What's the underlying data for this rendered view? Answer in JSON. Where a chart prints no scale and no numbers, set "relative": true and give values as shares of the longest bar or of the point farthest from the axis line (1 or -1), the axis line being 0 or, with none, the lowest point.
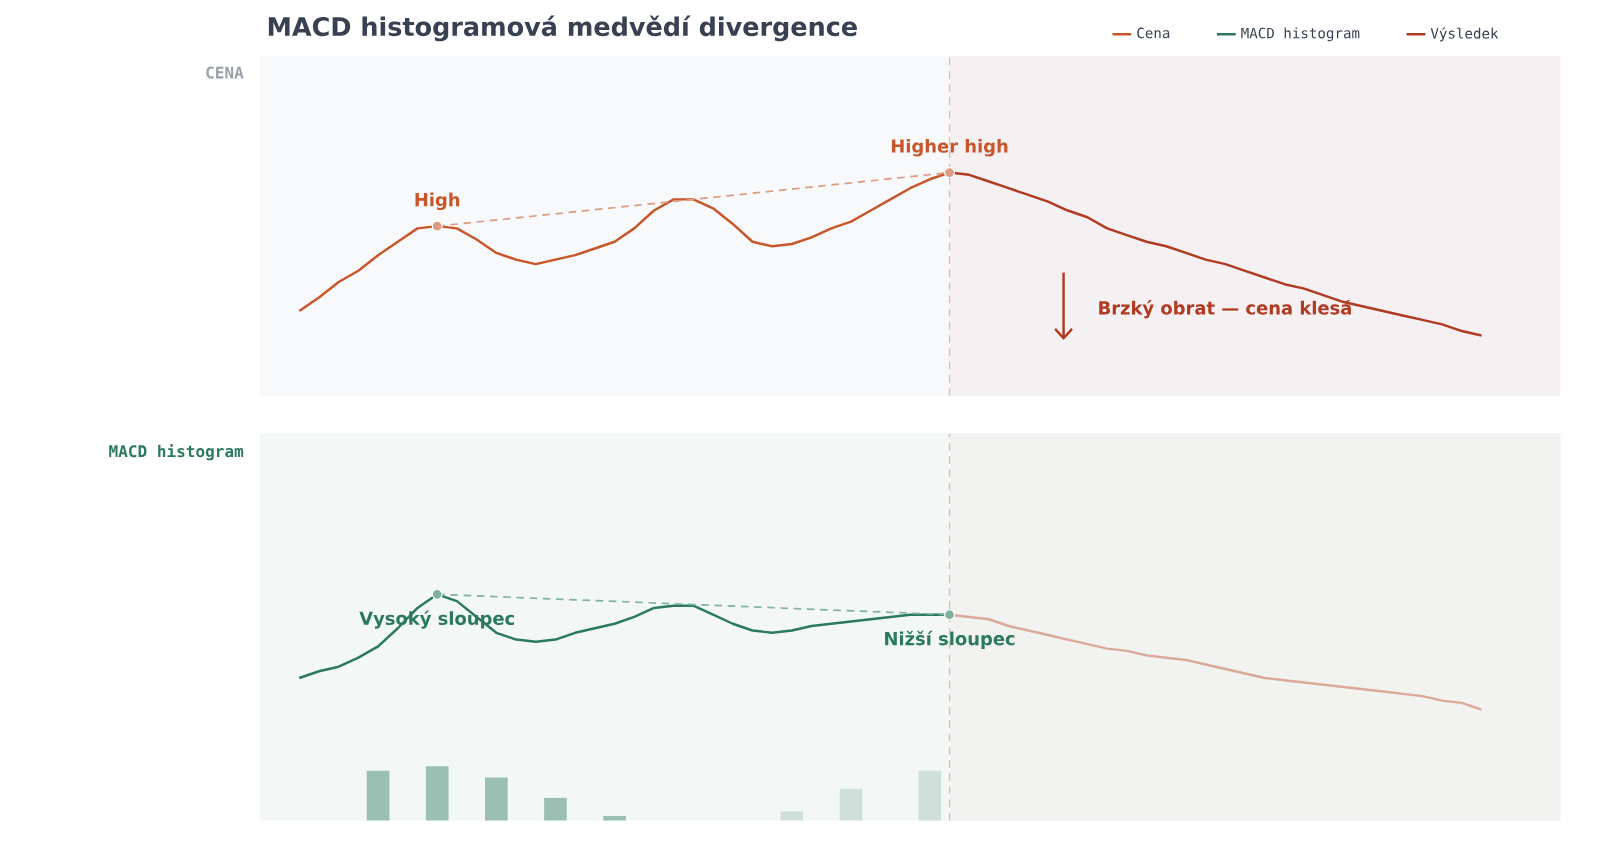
{
  "chart_data": [
    {
      "type": "line",
      "relative": true,
      "title": "MACD histogramová medvědí divergence",
      "ylabel": "CENA",
      "legend": "top right",
      "categories": [
        null,
        null,
        null,
        null,
        null,
        null,
        null,
        null,
        null,
        null,
        null,
        null,
        null,
        null,
        null,
        null,
        null,
        null,
        null,
        null,
        null,
        null,
        null,
        null,
        null,
        null,
        null,
        null,
        null,
        null,
        null,
        null,
        null,
        null,
        null,
        null,
        null,
        null,
        null,
        null,
        null,
        null,
        null,
        null,
        null,
        null,
        null,
        null,
        null,
        null,
        null,
        null,
        null,
        null,
        null,
        null,
        null,
        null,
        null,
        null,
        null
      ],
      "series": [
        {
          "name": "Cena",
          "color": "#c8562a",
          "values": [
            0.38,
            0.44,
            0.51,
            0.56,
            0.63,
            0.69,
            0.75,
            0.76,
            0.75,
            0.7,
            0.64,
            0.61,
            0.59,
            0.61,
            0.63,
            0.66,
            0.69,
            0.75,
            0.83,
            0.88,
            0.88,
            0.84,
            0.77,
            0.69,
            0.67,
            0.68,
            0.71,
            0.75,
            0.78,
            0.83,
            0.88,
            0.93,
            0.97,
            1.0,
            null,
            null,
            null,
            null,
            null,
            null,
            null,
            null,
            null,
            null,
            null,
            null,
            null,
            null,
            null,
            null,
            null,
            null,
            null,
            null,
            null,
            null,
            null,
            null,
            null,
            null,
            null
          ]
        },
        {
          "name": "Výsledek",
          "color": "#b03a22",
          "values": [
            null,
            null,
            null,
            null,
            null,
            null,
            null,
            null,
            null,
            null,
            null,
            null,
            null,
            null,
            null,
            null,
            null,
            null,
            null,
            null,
            null,
            null,
            null,
            null,
            null,
            null,
            null,
            null,
            null,
            null,
            null,
            null,
            null,
            1.0,
            0.99,
            0.96,
            0.93,
            0.9,
            0.87,
            0.83,
            0.8,
            0.75,
            0.72,
            0.69,
            0.67,
            0.64,
            0.61,
            0.59,
            0.56,
            0.53,
            0.5,
            0.48,
            0.45,
            0.42,
            0.4,
            0.38,
            0.36,
            0.34,
            0.32,
            0.29,
            0.27
          ]
        },
        {
          "color": "#dc9a80",
          "line_style": "dashed",
          "marker": "circle",
          "values": [
            null,
            null,
            null,
            null,
            null,
            null,
            null,
            0.76,
            null,
            null,
            null,
            null,
            null,
            null,
            null,
            null,
            null,
            null,
            null,
            null,
            null,
            null,
            null,
            null,
            null,
            null,
            null,
            null,
            null,
            null,
            null,
            null,
            null,
            1.0,
            null,
            null,
            null,
            null,
            null,
            null,
            null,
            null,
            null,
            null,
            null,
            null,
            null,
            null,
            null,
            null,
            null,
            null,
            null,
            null,
            null,
            null,
            null,
            null,
            null,
            null,
            null
          ]
        }
      ],
      "annotations": [
        {
          "text": "High",
          "y": 0.76
        },
        {
          "text": "Higher high",
          "y": 1.0
        },
        "Brzký obrat — cena klesá"
      ]
    },
    {
      "type": "line",
      "relative": true,
      "ylabel": "MACD histogram",
      "categories": [
        null,
        null,
        null,
        null,
        null,
        null,
        null,
        null,
        null,
        null,
        null,
        null,
        null,
        null,
        null,
        null,
        null,
        null,
        null,
        null,
        null,
        null,
        null,
        null,
        null,
        null,
        null,
        null,
        null,
        null,
        null,
        null,
        null,
        null,
        null,
        null,
        null,
        null,
        null,
        null,
        null,
        null,
        null,
        null,
        null,
        null,
        null,
        null,
        null,
        null,
        null,
        null,
        null,
        null,
        null,
        null,
        null,
        null,
        null,
        null,
        null
      ],
      "series": [
        {
          "name": "MACD histogram",
          "color": "#2b7a5e",
          "values": [
            0.63,
            0.66,
            0.68,
            0.72,
            0.77,
            0.85,
            0.94,
            1.0,
            0.97,
            0.9,
            0.83,
            0.8,
            0.79,
            0.8,
            0.83,
            0.85,
            0.87,
            0.9,
            0.94,
            0.95,
            0.95,
            0.91,
            0.87,
            0.84,
            0.83,
            0.84,
            0.86,
            0.87,
            0.88,
            0.89,
            0.9,
            0.91,
            0.91,
            0.91,
            null,
            null,
            null,
            null,
            null,
            null,
            null,
            null,
            null,
            null,
            null,
            null,
            null,
            null,
            null,
            null,
            null,
            null,
            null,
            null,
            null,
            null,
            null,
            null,
            null,
            null,
            null
          ]
        },
        {
          "color": "#dba99a",
          "values": [
            null,
            null,
            null,
            null,
            null,
            null,
            null,
            null,
            null,
            null,
            null,
            null,
            null,
            null,
            null,
            null,
            null,
            null,
            null,
            null,
            null,
            null,
            null,
            null,
            null,
            null,
            null,
            null,
            null,
            null,
            null,
            null,
            null,
            0.91,
            0.9,
            0.89,
            0.86,
            0.84,
            0.82,
            0.8,
            0.78,
            0.76,
            0.75,
            0.73,
            0.72,
            0.71,
            0.69,
            0.67,
            0.65,
            0.63,
            0.62,
            0.61,
            0.6,
            0.59,
            0.58,
            0.57,
            0.56,
            0.55,
            0.53,
            0.52,
            0.49
          ]
        },
        {
          "color": "#7fb3a0",
          "line_style": "dashed",
          "marker": "circle",
          "values": [
            null,
            null,
            null,
            null,
            null,
            null,
            null,
            1.0,
            null,
            null,
            null,
            null,
            null,
            null,
            null,
            null,
            null,
            null,
            null,
            null,
            null,
            null,
            null,
            null,
            null,
            null,
            null,
            null,
            null,
            null,
            null,
            null,
            null,
            0.91,
            null,
            null,
            null,
            null,
            null,
            null,
            null,
            null,
            null,
            null,
            null,
            null,
            null,
            null,
            null,
            null,
            null,
            null,
            null,
            null,
            null,
            null,
            null,
            null,
            null,
            null,
            null
          ]
        },
        {
          "type": "bar",
          "values": [
            null,
            null,
            null,
            null,
            0.22,
            null,
            null,
            0.24,
            null,
            null,
            0.19,
            null,
            null,
            0.1,
            null,
            null,
            0.02,
            null,
            null,
            null,
            null,
            null,
            null,
            null,
            null,
            0.04,
            null,
            null,
            0.14,
            null,
            null,
            null,
            0.22,
            null,
            null,
            null,
            null,
            null,
            null,
            null,
            null,
            null,
            null,
            null,
            null,
            null,
            null,
            null,
            null,
            null,
            null,
            null,
            null,
            null,
            null,
            null,
            null,
            null,
            null,
            null,
            null
          ],
          "colors": [
            null,
            null,
            null,
            null,
            "#9bbfb2",
            null,
            null,
            "#9bbfb2",
            null,
            null,
            "#9bbfb2",
            null,
            null,
            "#9bbfb2",
            null,
            null,
            "#9bbfb2",
            null,
            null,
            null,
            null,
            null,
            null,
            null,
            null,
            "#cfe0da",
            null,
            null,
            "#cfe0da",
            null,
            null,
            null,
            "#cfe0da",
            null,
            null,
            null,
            null,
            null,
            null,
            null,
            null,
            null,
            null,
            null,
            null,
            null,
            null,
            null,
            null,
            null,
            null,
            null,
            null,
            null,
            null,
            null,
            null,
            null,
            null,
            null,
            null
          ]
        }
      ],
      "annotations": [
        {
          "text": "Vysoký sloupec",
          "y": 1.0
        },
        {
          "text": "Nižší sloupec",
          "y": 0.91
        }
      ]
    }
  ]
}
